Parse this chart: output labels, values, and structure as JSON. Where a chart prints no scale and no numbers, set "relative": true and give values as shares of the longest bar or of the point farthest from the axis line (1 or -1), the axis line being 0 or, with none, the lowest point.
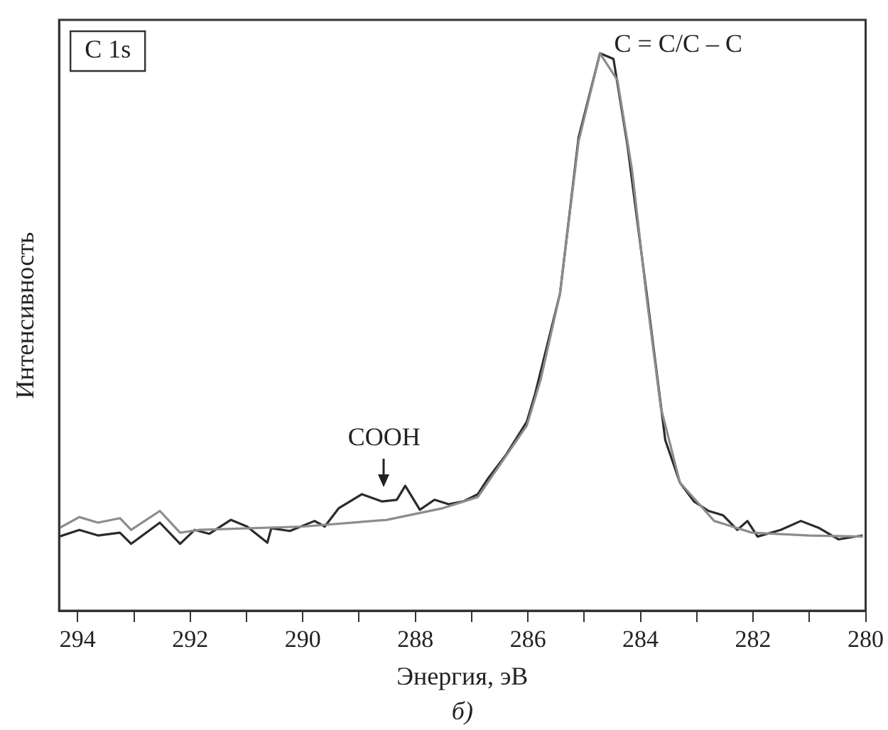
{
  "chart_data": {
    "type": "line",
    "title": "C 1s",
    "xlabel": "Энергия, эВ",
    "ylabel": "Интенсивность",
    "relative": true,
    "xlim": [
      294.33,
      280
    ],
    "xticks": [
      294,
      {
        "value": 293,
        "label": null
      },
      292,
      {
        "value": 291,
        "label": null
      },
      290,
      {
        "value": 289,
        "label": null
      },
      288,
      {
        "value": 287,
        "label": null
      },
      286,
      {
        "value": 285,
        "label": null
      },
      284,
      {
        "value": 283,
        "label": null
      },
      282,
      {
        "value": 281,
        "label": null
      },
      280
    ],
    "grid": false,
    "legend": false,
    "marker": "none",
    "line_style": "solid",
    "annotations": [
      {
        "text": "C = C/C – C",
        "x": 284.72,
        "y": 1
      },
      "COOH",
      "б)"
    ],
    "series": [
      {
        "color": "#8c8c8c",
        "x": [
          294.33,
          293.97,
          293.64,
          293.25,
          293.05,
          292.54,
          292.18,
          291.84,
          289.99,
          288.51,
          287.51,
          286.89,
          286.02,
          285.77,
          285.43,
          285.1,
          284.72,
          284.41,
          284.15,
          283.9,
          283.64,
          283.3,
          282.69,
          282.02,
          281.0,
          280.05
        ],
        "values": [
          0.148,
          0.168,
          0.158,
          0.166,
          0.145,
          0.179,
          0.14,
          0.145,
          0.151,
          0.163,
          0.184,
          0.204,
          0.332,
          0.416,
          0.569,
          0.842,
          1.0,
          0.952,
          0.791,
          0.569,
          0.365,
          0.23,
          0.161,
          0.14,
          0.135,
          0.133
        ]
      },
      {
        "color": "#2b2b2b",
        "x": [
          294.33,
          293.97,
          293.64,
          293.25,
          293.05,
          292.54,
          292.18,
          291.92,
          291.66,
          291.28,
          290.99,
          290.63,
          290.56,
          290.23,
          289.79,
          289.61,
          289.36,
          288.95,
          288.59,
          288.33,
          288.18,
          287.92,
          287.66,
          287.41,
          287.15,
          286.89,
          286.71,
          286.38,
          286.02,
          285.87,
          285.43,
          285.1,
          284.72,
          284.48,
          284.23,
          283.89,
          283.56,
          283.3,
          283.05,
          282.79,
          282.53,
          282.28,
          282.1,
          281.92,
          281.51,
          281.15,
          280.82,
          280.48,
          280.05
        ],
        "values": [
          0.133,
          0.145,
          0.135,
          0.14,
          0.12,
          0.158,
          0.12,
          0.145,
          0.138,
          0.163,
          0.151,
          0.122,
          0.148,
          0.143,
          0.161,
          0.151,
          0.184,
          0.209,
          0.196,
          0.199,
          0.224,
          0.181,
          0.199,
          0.191,
          0.196,
          0.209,
          0.237,
          0.281,
          0.339,
          0.39,
          0.569,
          0.849,
          1.0,
          0.99,
          0.834,
          0.569,
          0.306,
          0.23,
          0.196,
          0.179,
          0.171,
          0.145,
          0.161,
          0.133,
          0.145,
          0.161,
          0.148,
          0.128,
          0.135
        ]
      }
    ]
  }
}
